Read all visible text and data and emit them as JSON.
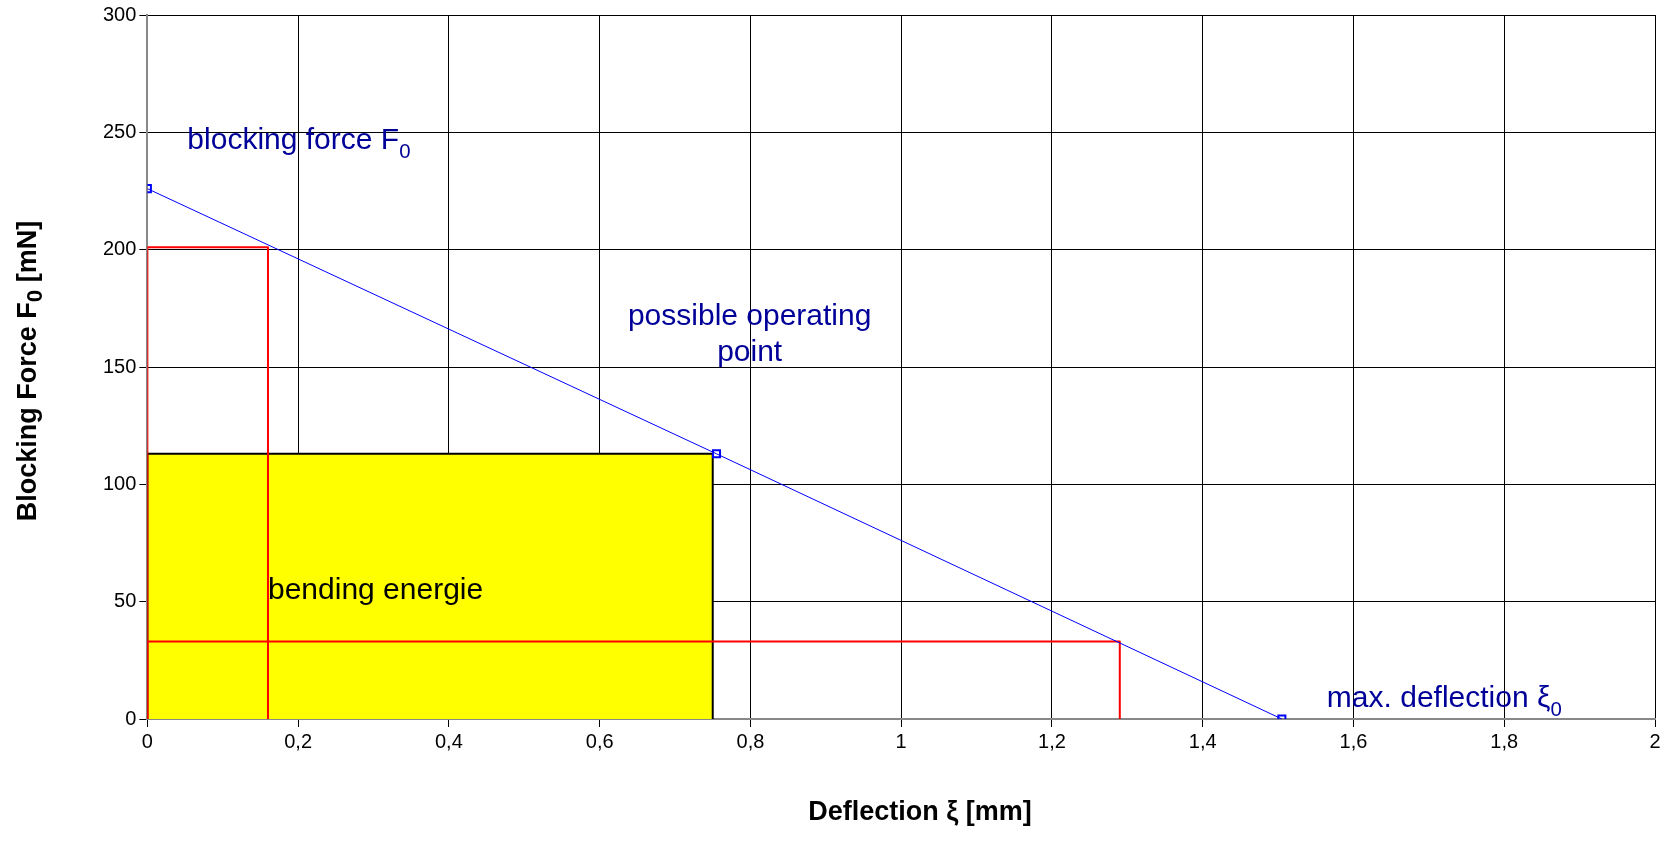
{
  "chart_data": {
    "type": "line",
    "xlabel": "Deflection ξ [mm]",
    "ylabel": "Blocking Force F$_{0}$ [mN]",
    "xlim": [
      0,
      2
    ],
    "xticks": [
      0,
      {
        "value": 0.2,
        "label": "0,2"
      },
      {
        "value": 0.4,
        "label": "0,4"
      },
      {
        "value": 0.6,
        "label": "0,6"
      },
      {
        "value": 0.8,
        "label": "0,8"
      },
      1,
      {
        "value": 1.2,
        "label": "1,2"
      },
      {
        "value": 1.4,
        "label": "1,4"
      },
      {
        "value": 1.6,
        "label": "1,6"
      },
      {
        "value": 1.8,
        "label": "1,8"
      },
      2
    ],
    "ylim": [
      0,
      300
    ],
    "yticks": [
      0,
      50,
      100,
      150,
      200,
      250,
      300
    ],
    "grid": true,
    "legend": false,
    "series": [
      {
        "type": "area",
        "color": "#ffff00",
        "x": [
          0,
          0,
          0.75,
          0.75
        ],
        "values": [
          0,
          113,
          113,
          0
        ],
        "marker": "none"
      },
      {
        "color": "#ff0000",
        "x": [
          0,
          0,
          0.16,
          0.16
        ],
        "values": [
          0,
          201,
          201,
          0
        ],
        "marker": "none"
      },
      {
        "color": "#ff0000",
        "x": [
          0,
          0,
          1.29,
          1.29
        ],
        "values": [
          0,
          33,
          33,
          0
        ],
        "marker": "none"
      },
      {
        "color": "#0000ff",
        "x": [
          0,
          0.755,
          1.505
        ],
        "values": [
          226,
          113,
          0
        ],
        "marker": "square"
      }
    ],
    "annotations": [
      {
        "text": "blocking force F$_{0}$",
        "x": 0,
        "y": 226
      },
      "possible operating point",
      "bending energie",
      {
        "text": "max. deflection ξ$_{0}$",
        "x": 1.505,
        "y": 0
      }
    ]
  }
}
